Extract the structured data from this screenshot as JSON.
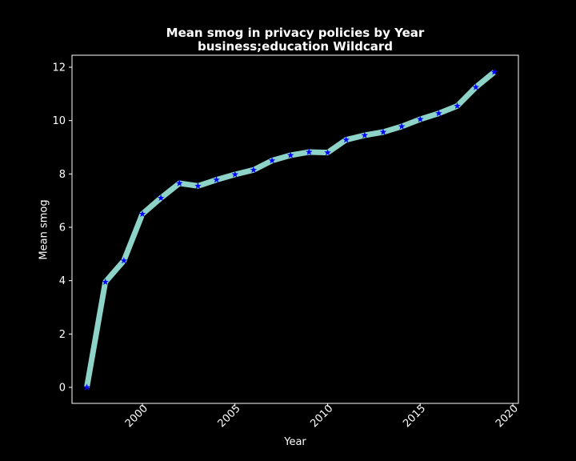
{
  "chart_data": {
    "type": "line",
    "title": "Mean smog in privacy policies by Year",
    "subtitle": "business;education Wildcard",
    "xlabel": "Year",
    "ylabel": "Mean smog",
    "xlim": [
      1996.2,
      2020.3
    ],
    "ylim": [
      -0.6,
      12.45
    ],
    "xticks": [
      2000,
      2005,
      2010,
      2015,
      2020
    ],
    "yticks": [
      0,
      2,
      4,
      6,
      8,
      10,
      12
    ],
    "grid": false,
    "colors": {
      "line": "#8dd3c7",
      "marker": "#0000ff",
      "background": "#000000",
      "text": "#ffffff"
    },
    "series": [
      {
        "x": [
          1997,
          1998,
          1999,
          2000,
          2001,
          2002,
          2003,
          2004,
          2005,
          2006,
          2007,
          2008,
          2009,
          2010,
          2011,
          2012,
          2013,
          2014,
          2015,
          2016,
          2017,
          2018,
          2019
        ],
        "y": [
          0.0,
          3.95,
          4.75,
          6.5,
          7.1,
          7.65,
          7.55,
          7.78,
          7.98,
          8.15,
          8.5,
          8.7,
          8.82,
          8.8,
          9.28,
          9.45,
          9.57,
          9.78,
          10.05,
          10.27,
          10.55,
          11.25,
          11.82
        ]
      }
    ]
  }
}
